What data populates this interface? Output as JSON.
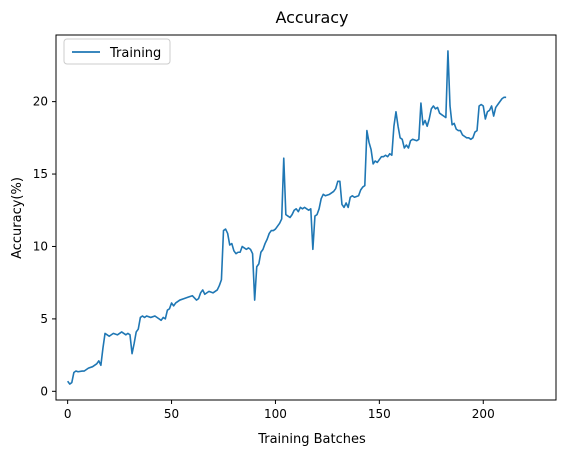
{
  "chart_data": {
    "type": "line",
    "title": "Accuracy",
    "xlabel": "Training Batches",
    "ylabel": "Accuracy(%)",
    "xlim": [
      -5.6,
      235
    ],
    "ylim": [
      -0.6,
      24.6
    ],
    "xticks": [
      0,
      50,
      100,
      150,
      200
    ],
    "yticks": [
      0,
      5,
      10,
      15,
      20
    ],
    "grid": false,
    "legend": "top-left",
    "series": [
      {
        "name": "Training",
        "color": "#1f77b4",
        "points": [
          [
            0,
            0.7
          ],
          [
            1,
            0.5
          ],
          [
            2,
            0.6
          ],
          [
            3,
            1.3
          ],
          [
            4,
            1.4
          ],
          [
            5,
            1.35
          ],
          [
            7,
            1.4
          ],
          [
            8,
            1.4
          ],
          [
            10,
            1.6
          ],
          [
            12,
            1.7
          ],
          [
            14,
            1.9
          ],
          [
            15,
            2.1
          ],
          [
            16,
            1.8
          ],
          [
            17,
            3.0
          ],
          [
            18,
            4.0
          ],
          [
            19,
            3.9
          ],
          [
            20,
            3.8
          ],
          [
            22,
            4.0
          ],
          [
            24,
            3.9
          ],
          [
            26,
            4.1
          ],
          [
            28,
            3.9
          ],
          [
            29,
            4.0
          ],
          [
            30,
            3.9
          ],
          [
            31,
            2.6
          ],
          [
            32,
            3.3
          ],
          [
            33,
            4.1
          ],
          [
            34,
            4.3
          ],
          [
            35,
            5.1
          ],
          [
            36,
            5.2
          ],
          [
            37,
            5.1
          ],
          [
            38,
            5.2
          ],
          [
            40,
            5.1
          ],
          [
            42,
            5.2
          ],
          [
            44,
            5.0
          ],
          [
            45,
            4.9
          ],
          [
            46,
            5.1
          ],
          [
            47,
            5.0
          ],
          [
            48,
            5.6
          ],
          [
            49,
            5.7
          ],
          [
            50,
            6.1
          ],
          [
            51,
            5.9
          ],
          [
            52,
            6.1
          ],
          [
            54,
            6.3
          ],
          [
            56,
            6.4
          ],
          [
            58,
            6.5
          ],
          [
            60,
            6.6
          ],
          [
            62,
            6.3
          ],
          [
            63,
            6.4
          ],
          [
            64,
            6.8
          ],
          [
            65,
            7.0
          ],
          [
            66,
            6.7
          ],
          [
            68,
            6.9
          ],
          [
            70,
            6.8
          ],
          [
            72,
            7.0
          ],
          [
            73,
            7.3
          ],
          [
            74,
            7.7
          ],
          [
            75,
            11.1
          ],
          [
            76,
            11.2
          ],
          [
            77,
            10.9
          ],
          [
            78,
            10.1
          ],
          [
            79,
            10.2
          ],
          [
            80,
            9.7
          ],
          [
            81,
            9.5
          ],
          [
            82,
            9.6
          ],
          [
            83,
            9.6
          ],
          [
            84,
            10.0
          ],
          [
            85,
            9.9
          ],
          [
            86,
            9.8
          ],
          [
            87,
            9.9
          ],
          [
            88,
            9.8
          ],
          [
            89,
            9.5
          ],
          [
            90,
            6.3
          ],
          [
            91,
            8.6
          ],
          [
            92,
            8.8
          ],
          [
            93,
            9.6
          ],
          [
            94,
            9.8
          ],
          [
            95,
            10.2
          ],
          [
            96,
            10.5
          ],
          [
            97,
            10.9
          ],
          [
            98,
            11.1
          ],
          [
            99,
            11.1
          ],
          [
            100,
            11.2
          ],
          [
            101,
            11.4
          ],
          [
            102,
            11.6
          ],
          [
            103,
            11.9
          ],
          [
            104,
            16.1
          ],
          [
            105,
            12.2
          ],
          [
            106,
            12.1
          ],
          [
            107,
            12.0
          ],
          [
            108,
            12.2
          ],
          [
            109,
            12.5
          ],
          [
            110,
            12.6
          ],
          [
            111,
            12.4
          ],
          [
            112,
            12.7
          ],
          [
            113,
            12.6
          ],
          [
            114,
            12.7
          ],
          [
            115,
            12.6
          ],
          [
            116,
            12.5
          ],
          [
            117,
            12.6
          ],
          [
            118,
            9.8
          ],
          [
            119,
            12.1
          ],
          [
            120,
            12.2
          ],
          [
            121,
            12.6
          ],
          [
            122,
            13.3
          ],
          [
            123,
            13.6
          ],
          [
            124,
            13.5
          ],
          [
            126,
            13.6
          ],
          [
            128,
            13.8
          ],
          [
            129,
            14.0
          ],
          [
            130,
            14.5
          ],
          [
            131,
            14.5
          ],
          [
            132,
            12.9
          ],
          [
            133,
            12.7
          ],
          [
            134,
            13.0
          ],
          [
            135,
            12.7
          ],
          [
            136,
            13.4
          ],
          [
            137,
            13.5
          ],
          [
            138,
            13.4
          ],
          [
            140,
            13.5
          ],
          [
            141,
            13.9
          ],
          [
            142,
            14.1
          ],
          [
            143,
            14.2
          ],
          [
            144,
            18.0
          ],
          [
            145,
            17.2
          ],
          [
            146,
            16.7
          ],
          [
            147,
            15.7
          ],
          [
            148,
            15.9
          ],
          [
            149,
            15.8
          ],
          [
            150,
            16.0
          ],
          [
            151,
            16.2
          ],
          [
            152,
            16.2
          ],
          [
            153,
            16.3
          ],
          [
            154,
            16.2
          ],
          [
            155,
            16.4
          ],
          [
            156,
            16.3
          ],
          [
            157,
            18.3
          ],
          [
            158,
            19.3
          ],
          [
            159,
            18.3
          ],
          [
            160,
            17.5
          ],
          [
            161,
            17.4
          ],
          [
            162,
            16.8
          ],
          [
            163,
            17.0
          ],
          [
            164,
            16.8
          ],
          [
            165,
            17.3
          ],
          [
            166,
            17.4
          ],
          [
            168,
            17.3
          ],
          [
            169,
            17.4
          ],
          [
            170,
            19.9
          ],
          [
            171,
            18.4
          ],
          [
            172,
            18.7
          ],
          [
            173,
            18.3
          ],
          [
            174,
            18.8
          ],
          [
            175,
            19.5
          ],
          [
            176,
            19.7
          ],
          [
            177,
            19.5
          ],
          [
            178,
            19.6
          ],
          [
            179,
            19.2
          ],
          [
            180,
            19.1
          ],
          [
            181,
            19.0
          ],
          [
            182,
            18.9
          ],
          [
            183,
            23.5
          ],
          [
            184,
            19.7
          ],
          [
            185,
            18.4
          ],
          [
            186,
            18.5
          ],
          [
            187,
            18.1
          ],
          [
            188,
            18.0
          ],
          [
            189,
            18.0
          ],
          [
            190,
            17.7
          ],
          [
            191,
            17.6
          ],
          [
            192,
            17.5
          ],
          [
            193,
            17.5
          ],
          [
            194,
            17.4
          ],
          [
            195,
            17.5
          ],
          [
            196,
            17.9
          ],
          [
            197,
            18.0
          ],
          [
            198,
            19.7
          ],
          [
            199,
            19.8
          ],
          [
            200,
            19.7
          ],
          [
            201,
            18.8
          ],
          [
            202,
            19.3
          ],
          [
            203,
            19.4
          ],
          [
            204,
            19.7
          ],
          [
            205,
            19.0
          ],
          [
            206,
            19.6
          ],
          [
            207,
            19.8
          ],
          [
            208,
            20.0
          ],
          [
            209,
            20.2
          ],
          [
            210,
            20.3
          ],
          [
            211,
            20.3
          ]
        ]
      }
    ]
  }
}
